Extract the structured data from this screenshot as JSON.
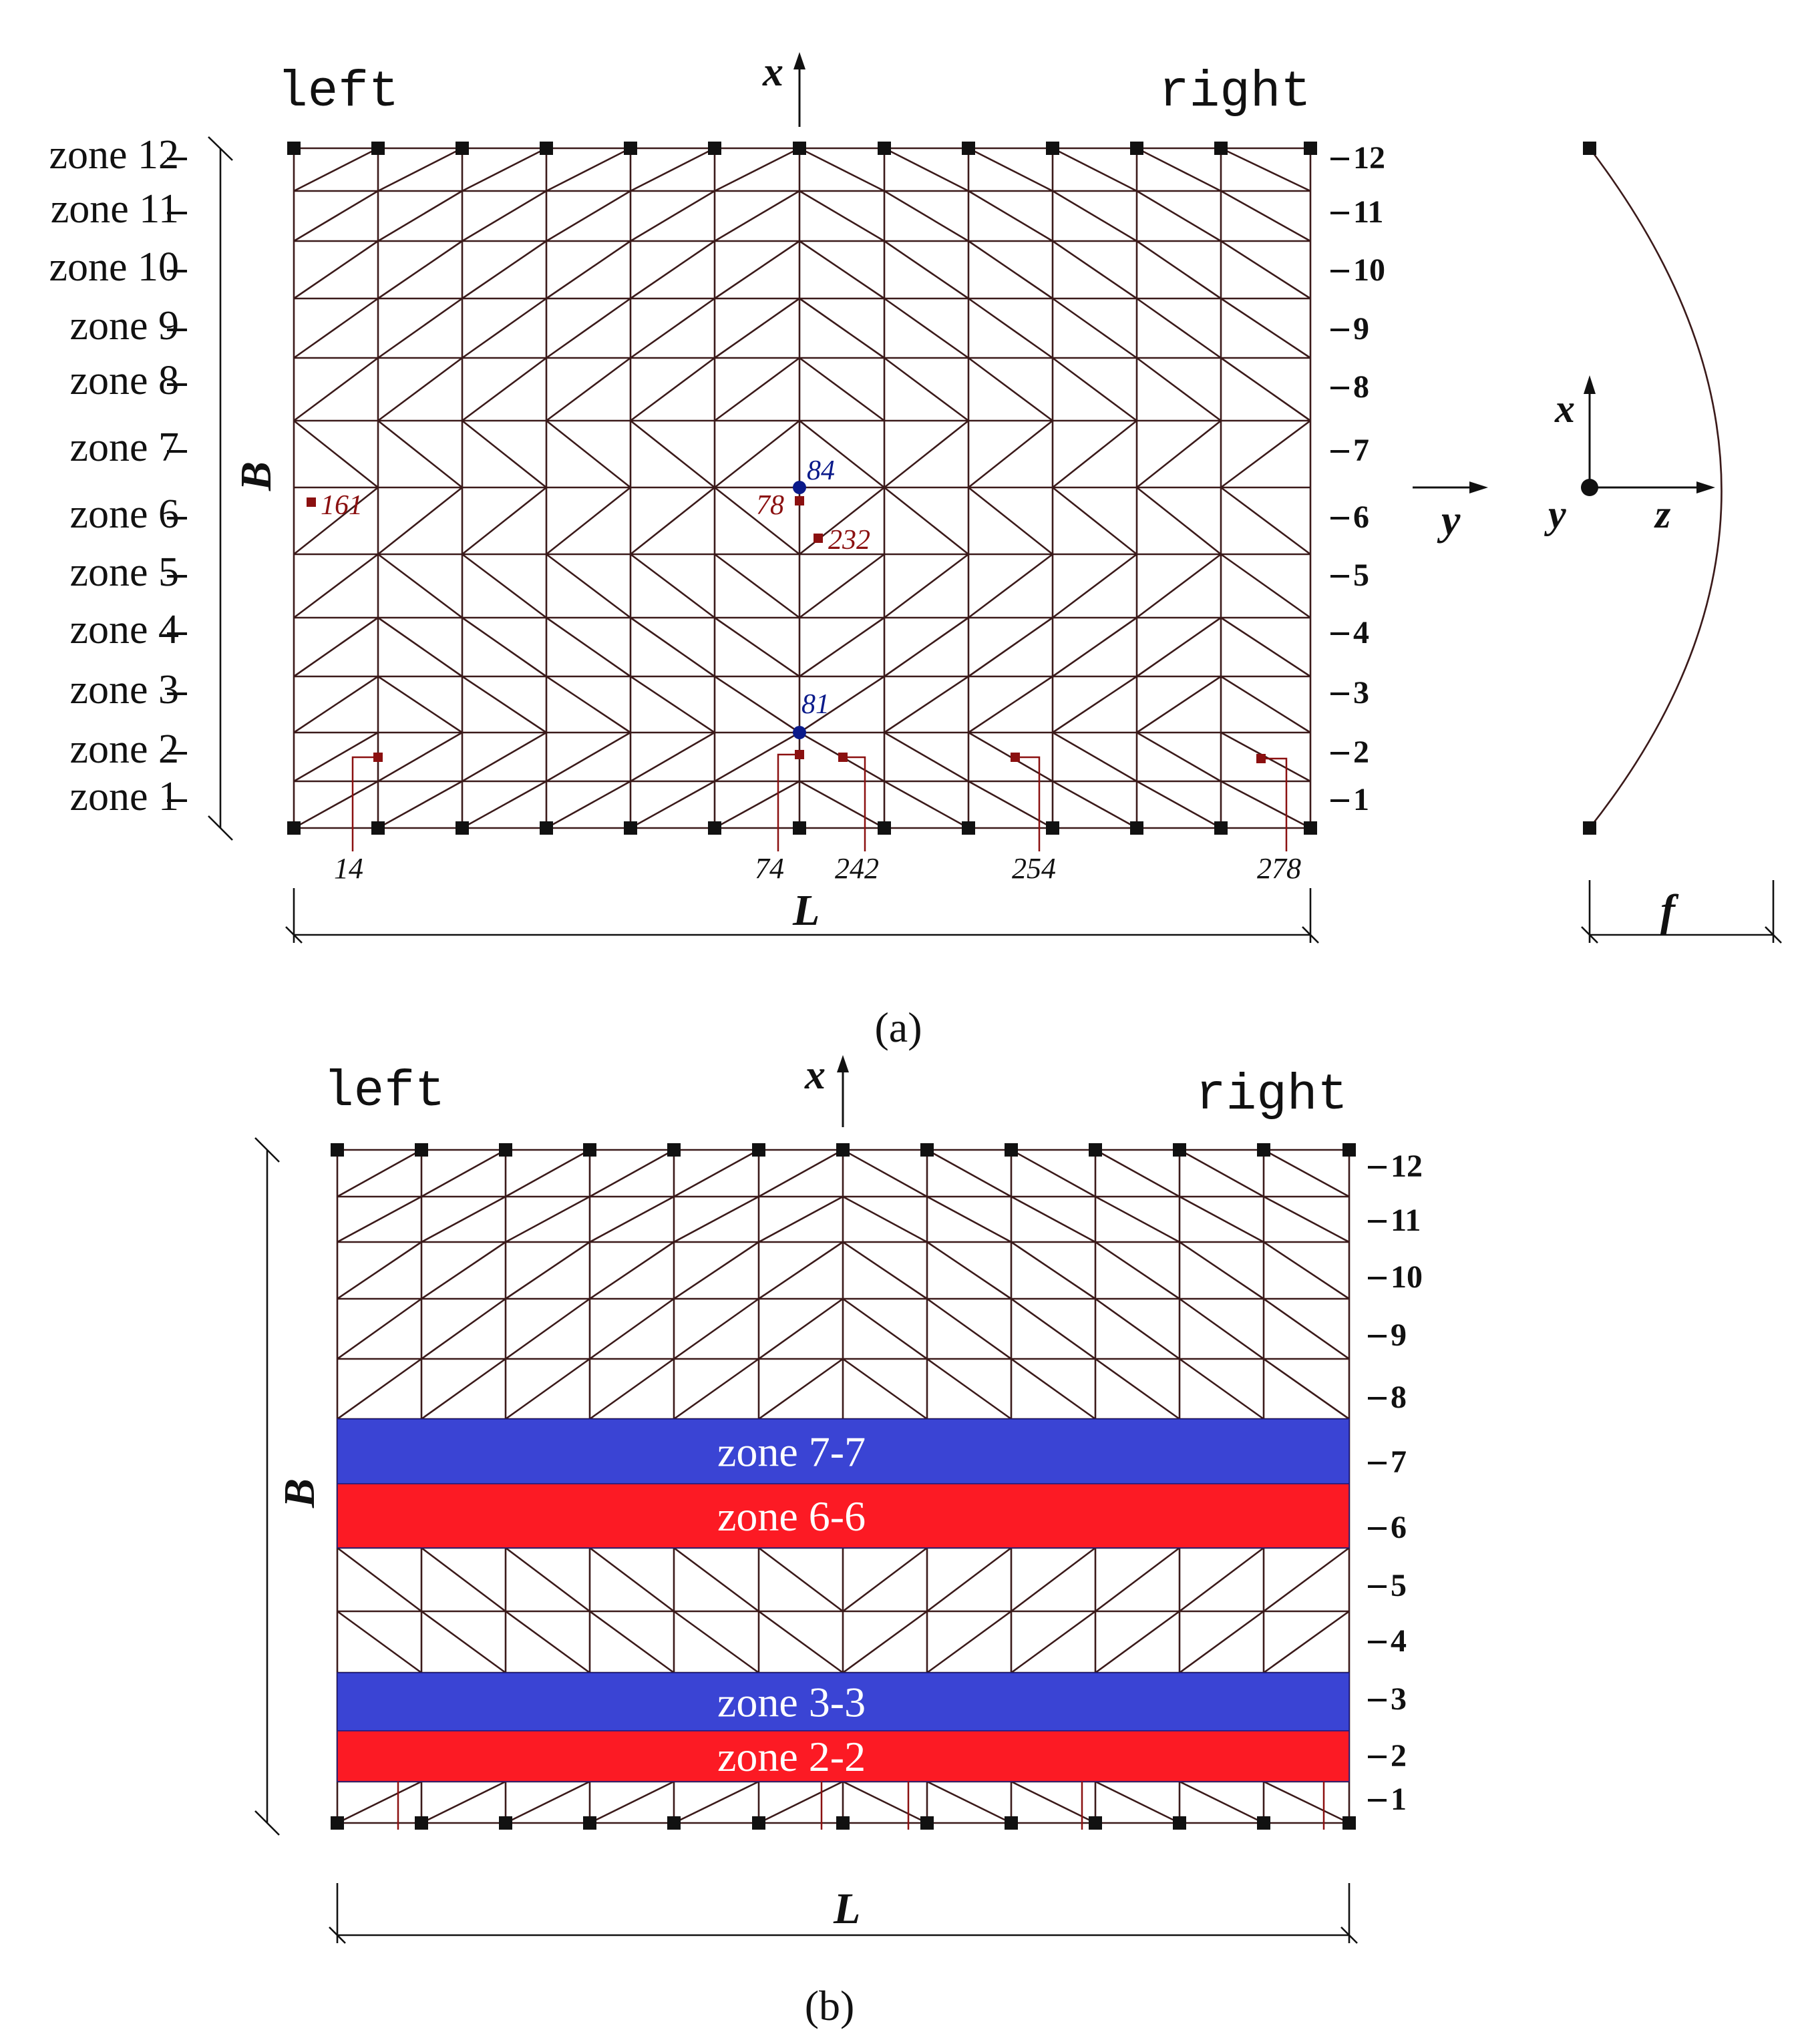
{
  "figure": {
    "panel_a": {
      "caption": "(a)",
      "side_left": "left",
      "side_right": "right",
      "axis_x_top": "x",
      "width_label": "L",
      "height_label": "B",
      "rise_label": "f",
      "left_zone_labels": [
        "zone 1",
        "zone 2",
        "zone 3",
        "zone 4",
        "zone 5",
        "zone 6",
        "zone 7",
        "zone 8",
        "zone 9",
        "zone 10",
        "zone 11",
        "zone 12"
      ],
      "right_row_labels": [
        "1",
        "2",
        "3",
        "4",
        "5",
        "6",
        "7",
        "8",
        "9",
        "10",
        "11",
        "12"
      ],
      "node_labels": [
        "161",
        "84",
        "78",
        "232",
        "81",
        "14",
        "74",
        "242",
        "254",
        "278"
      ],
      "plan_axis_y": "y",
      "section_axes": {
        "x": "x",
        "y": "y",
        "z": "z"
      }
    },
    "panel_b": {
      "caption": "(b)",
      "side_left": "left",
      "side_right": "right",
      "axis_x_top": "x",
      "width_label": "L",
      "height_label": "B",
      "right_row_labels": [
        "1",
        "2",
        "3",
        "4",
        "5",
        "6",
        "7",
        "8",
        "9",
        "10",
        "11",
        "12"
      ],
      "bands": [
        {
          "label": "zone 7-7",
          "color": "#3a44d4"
        },
        {
          "label": "zone 6-6",
          "color": "#fc1a24"
        },
        {
          "label": "zone 3-3",
          "color": "#3a44d4"
        },
        {
          "label": "zone 2-2",
          "color": "#fc1a24"
        }
      ]
    },
    "colors": {
      "mesh": "#3b1a1a",
      "node": "#111111",
      "marker_red": "#8b1010",
      "marker_blue": "#0a1a8a",
      "band_blue": "#3a44d4",
      "band_red": "#fc1a24"
    }
  }
}
